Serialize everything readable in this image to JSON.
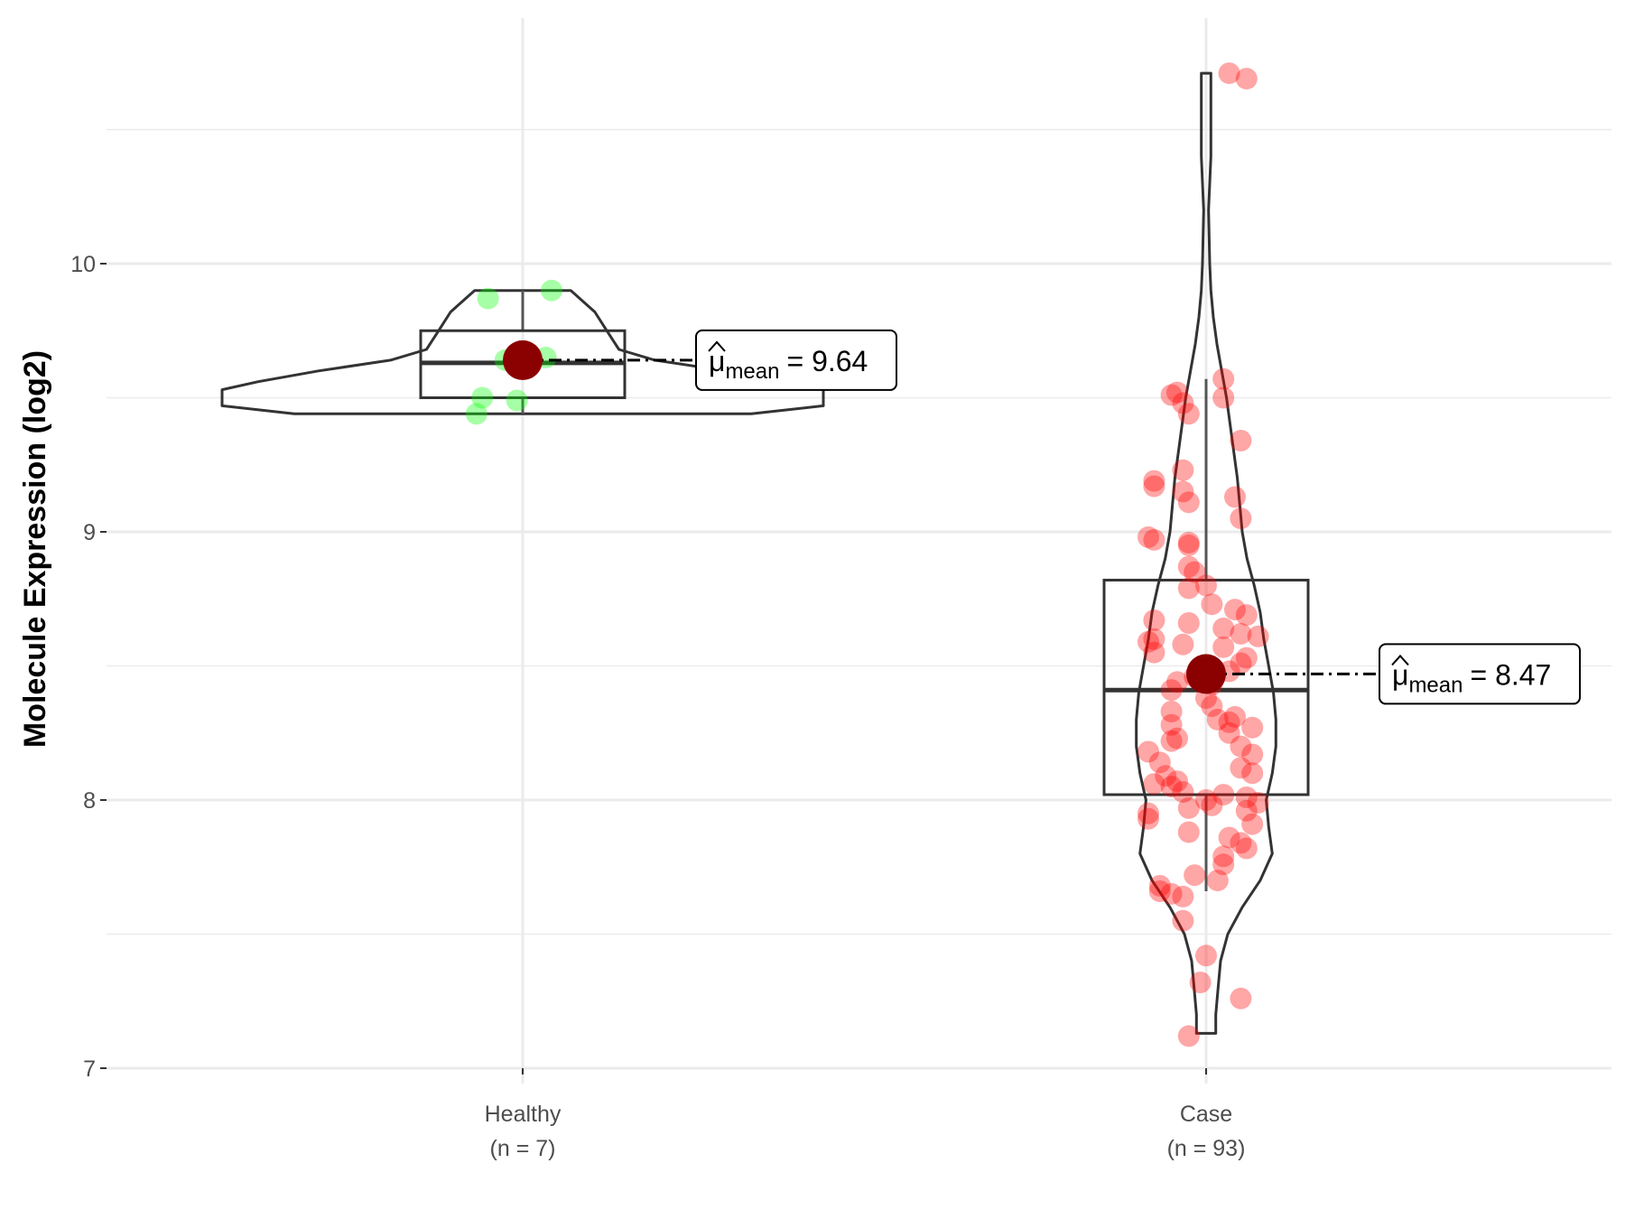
{
  "chart_data": {
    "type": "violin-box-jitter",
    "ylabel": "Molecule Expression (log2)",
    "xlabel": "",
    "ylim": [
      6.95,
      10.95
    ],
    "yticks": [
      7,
      8,
      9,
      10
    ],
    "yminor": [
      7.5,
      8.5,
      9.5,
      10.5
    ],
    "grid": true,
    "groups": [
      {
        "name": "Healthy",
        "n_label": "(n = 7)",
        "point_color": "#00ff00",
        "points": [
          9.87,
          9.9,
          9.64,
          9.65,
          9.5,
          9.49,
          9.44
        ],
        "jitter": [
          -0.06,
          0.05,
          -0.03,
          0.04,
          -0.07,
          -0.01,
          -0.08
        ],
        "box": {
          "q1": 9.5,
          "median": 9.63,
          "q3": 9.75,
          "whisker_low": 9.44,
          "whisker_high": 9.9
        },
        "violin": [
          [
            9.44,
            0.19
          ],
          [
            9.47,
            0.25
          ],
          [
            9.5,
            0.25
          ],
          [
            9.53,
            0.25
          ],
          [
            9.56,
            0.22
          ],
          [
            9.6,
            0.17
          ],
          [
            9.64,
            0.11
          ],
          [
            9.68,
            0.08
          ],
          [
            9.75,
            0.07
          ],
          [
            9.82,
            0.06
          ],
          [
            9.86,
            0.05
          ],
          [
            9.9,
            0.04
          ]
        ],
        "mean": 9.64,
        "mean_label": "9.64"
      },
      {
        "name": "Case",
        "n_label": "(n = 93)",
        "point_color": "#ff0000",
        "points": [
          10.71,
          10.69,
          9.57,
          9.5,
          9.51,
          9.52,
          9.48,
          9.44,
          9.34,
          9.23,
          9.19,
          9.17,
          9.13,
          9.15,
          9.11,
          9.05,
          8.98,
          8.97,
          8.96,
          8.95,
          8.87,
          8.85,
          8.8,
          8.79,
          8.73,
          8.71,
          8.69,
          8.67,
          8.66,
          8.64,
          8.62,
          8.61,
          8.6,
          8.59,
          8.58,
          8.57,
          8.55,
          8.53,
          8.51,
          8.48,
          8.46,
          8.44,
          8.43,
          8.41,
          8.38,
          8.35,
          8.33,
          8.31,
          8.3,
          8.29,
          8.28,
          8.27,
          8.25,
          8.23,
          8.22,
          8.2,
          8.18,
          8.17,
          8.14,
          8.12,
          8.1,
          8.09,
          8.07,
          8.06,
          8.05,
          8.03,
          8.02,
          8.01,
          8.0,
          7.99,
          7.98,
          7.97,
          7.96,
          7.95,
          7.93,
          7.91,
          7.88,
          7.86,
          7.84,
          7.82,
          7.79,
          7.76,
          7.72,
          7.7,
          7.68,
          7.66,
          7.65,
          7.64,
          7.55,
          7.42,
          7.32,
          7.26,
          7.12
        ],
        "jitter": [
          0.04,
          0.07,
          0.03,
          0.03,
          -0.06,
          -0.05,
          -0.04,
          -0.03,
          0.06,
          -0.04,
          -0.09,
          -0.09,
          0.05,
          -0.04,
          -0.03,
          0.06,
          -0.1,
          -0.09,
          -0.03,
          -0.03,
          -0.03,
          -0.02,
          0.0,
          -0.03,
          0.01,
          0.05,
          0.07,
          -0.09,
          -0.03,
          0.03,
          0.06,
          0.09,
          -0.09,
          -0.1,
          -0.04,
          0.03,
          -0.09,
          0.07,
          0.06,
          0.04,
          -0.02,
          -0.05,
          0.01,
          -0.06,
          0.0,
          0.01,
          -0.06,
          0.05,
          0.02,
          0.04,
          -0.06,
          0.08,
          0.04,
          -0.05,
          -0.06,
          0.06,
          -0.1,
          0.08,
          -0.08,
          0.06,
          0.08,
          -0.07,
          -0.05,
          -0.09,
          -0.06,
          -0.04,
          0.03,
          0.07,
          0.0,
          0.09,
          0.01,
          -0.03,
          0.07,
          -0.1,
          -0.1,
          0.08,
          -0.03,
          0.04,
          0.06,
          0.07,
          0.03,
          0.03,
          -0.02,
          0.02,
          -0.08,
          -0.08,
          -0.06,
          -0.04,
          -0.04,
          0.0,
          -0.01,
          0.06,
          -0.03
        ],
        "box": {
          "q1": 8.02,
          "median": 8.41,
          "q3": 8.82,
          "whisker_low": 7.66,
          "whisker_high": 9.57
        },
        "violin": [
          [
            7.13,
            0.008
          ],
          [
            7.2,
            0.008
          ],
          [
            7.3,
            0.01
          ],
          [
            7.4,
            0.012
          ],
          [
            7.5,
            0.018
          ],
          [
            7.6,
            0.03
          ],
          [
            7.7,
            0.045
          ],
          [
            7.8,
            0.055
          ],
          [
            7.9,
            0.052
          ],
          [
            8.0,
            0.05
          ],
          [
            8.1,
            0.055
          ],
          [
            8.2,
            0.058
          ],
          [
            8.3,
            0.058
          ],
          [
            8.4,
            0.056
          ],
          [
            8.5,
            0.052
          ],
          [
            8.6,
            0.048
          ],
          [
            8.7,
            0.045
          ],
          [
            8.8,
            0.04
          ],
          [
            8.9,
            0.034
          ],
          [
            9.0,
            0.03
          ],
          [
            9.1,
            0.028
          ],
          [
            9.2,
            0.026
          ],
          [
            9.3,
            0.023
          ],
          [
            9.4,
            0.02
          ],
          [
            9.5,
            0.017
          ],
          [
            9.6,
            0.013
          ],
          [
            9.7,
            0.009
          ],
          [
            9.8,
            0.006
          ],
          [
            9.9,
            0.004
          ],
          [
            10.0,
            0.003
          ],
          [
            10.2,
            0.002
          ],
          [
            10.4,
            0.004
          ],
          [
            10.5,
            0.004
          ],
          [
            10.6,
            0.004
          ],
          [
            10.71,
            0.004
          ]
        ],
        "mean": 8.47,
        "mean_label": "8.47"
      }
    ],
    "annotation": {
      "symbol": "μ",
      "subscript": "mean",
      "equals": "="
    }
  }
}
